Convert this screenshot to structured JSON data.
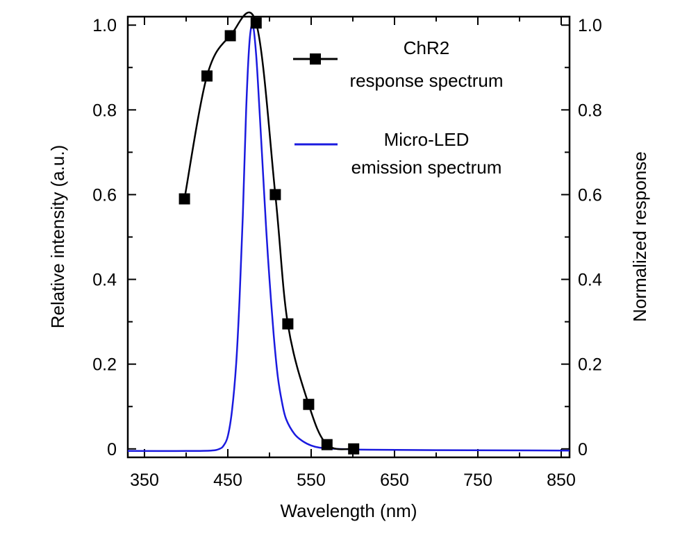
{
  "colors": {
    "chr2": "#000000",
    "led": "#1a1adf",
    "axis": "#000000",
    "background": "#ffffff"
  },
  "chart_data": {
    "type": "line",
    "xlabel": "Wavelength (nm)",
    "ylabel_left": "Relative intensity (a.u.)",
    "ylabel_right": "Normalized response",
    "xlim": [
      330,
      860
    ],
    "ylim": [
      -0.02,
      1.02
    ],
    "x_ticks": [
      350,
      450,
      550,
      650,
      750,
      850
    ],
    "x_tick_labels": [
      "350",
      "450",
      "550",
      "650",
      "750",
      "850"
    ],
    "y_ticks": [
      0,
      0.2,
      0.4,
      0.6,
      0.8,
      1.0
    ],
    "y_tick_labels": [
      "0",
      "0.2",
      "0.4",
      "0.6",
      "0.8",
      "1.0"
    ],
    "grid": false,
    "legend_placement": "top-right",
    "legend": [
      {
        "text_line1": "ChR2",
        "text_line2": "response spectrum",
        "marker": "square"
      },
      {
        "text_line1": "Micro-LED",
        "text_line2": "emission spectrum",
        "marker": "none"
      }
    ],
    "series": [
      {
        "name": "ChR2 response spectrum",
        "axis": "right",
        "markers": "square",
        "x": [
          398,
          425,
          453,
          484,
          507,
          522,
          547,
          569,
          601
        ],
        "y": [
          0.59,
          0.88,
          0.975,
          1.005,
          0.6,
          0.295,
          0.105,
          0.01,
          0.0
        ]
      },
      {
        "name": "Micro-LED emission spectrum",
        "axis": "left",
        "markers": "none",
        "x": [
          330,
          400,
          430,
          440,
          445,
          450,
          455,
          460,
          464,
          468,
          472,
          476,
          480,
          484,
          488,
          492,
          496,
          500,
          505,
          510,
          515,
          520,
          530,
          540,
          550,
          560,
          580,
          620,
          700,
          860
        ],
        "y": [
          -0.005,
          -0.005,
          -0.004,
          0.0,
          0.008,
          0.03,
          0.09,
          0.2,
          0.35,
          0.55,
          0.8,
          0.96,
          1.0,
          0.93,
          0.8,
          0.66,
          0.52,
          0.4,
          0.27,
          0.17,
          0.11,
          0.07,
          0.035,
          0.018,
          0.008,
          0.003,
          0.0,
          -0.002,
          -0.003,
          -0.004
        ]
      }
    ]
  }
}
